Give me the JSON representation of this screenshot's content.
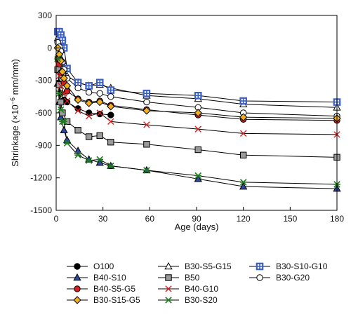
{
  "chart_data": {
    "type": "line",
    "title": "",
    "xlabel": "Age (days)",
    "ylabel": "Shrinkage (×10⁻⁶ mm/mm)",
    "ylabel_parts": {
      "main": "Shrinkage (×10",
      "sup": "−6",
      "unit": " mm/mm)"
    },
    "xlim": [
      0,
      180
    ],
    "ylim": [
      -1500,
      300
    ],
    "xticks": [
      0,
      30,
      60,
      90,
      120,
      150,
      180
    ],
    "yticks": [
      300,
      0,
      -300,
      -600,
      -900,
      -1200,
      -1500
    ],
    "grid": false,
    "legend_position": "bottom",
    "series": [
      {
        "name": "O100",
        "marker": "circle",
        "fill": "#000000",
        "stroke": "#000000",
        "x": [
          1,
          2,
          3,
          5,
          7,
          14,
          21,
          28,
          35
        ],
        "y": [
          -200,
          -330,
          -420,
          -480,
          -500,
          -560,
          -600,
          -610,
          -620
        ]
      },
      {
        "name": "B30-S5-G15",
        "marker": "triangle",
        "fill": "#ffffff",
        "stroke": "#000000",
        "x": [
          1,
          2,
          3,
          4,
          5,
          7,
          14,
          21,
          28,
          35,
          58,
          91,
          120,
          180
        ],
        "y": [
          90,
          40,
          -20,
          -120,
          -180,
          -260,
          -320,
          -350,
          -340,
          -370,
          -440,
          -470,
          -520,
          -550
        ]
      },
      {
        "name": "B30-S10-G10",
        "marker": "square-cross",
        "fill": "#ffffff",
        "stroke": "#3a5fc8",
        "x": [
          1,
          2,
          3,
          4,
          5,
          7,
          14,
          21,
          28,
          35,
          58,
          91,
          120,
          180
        ],
        "y": [
          150,
          150,
          120,
          70,
          0,
          -190,
          -320,
          -350,
          -320,
          -390,
          -420,
          -440,
          -490,
          -500
        ]
      },
      {
        "name": "B40-S10",
        "marker": "triangle",
        "fill": "#2e4a9a",
        "stroke": "#000000",
        "x": [
          1,
          2,
          3,
          5,
          7,
          14,
          21,
          28,
          35,
          58,
          91,
          120,
          180
        ],
        "y": [
          -330,
          -500,
          -640,
          -760,
          -850,
          -950,
          -1030,
          -1060,
          -1090,
          -1130,
          -1210,
          -1280,
          -1300
        ]
      },
      {
        "name": "B50",
        "marker": "square",
        "fill": "#9a9a9a",
        "stroke": "#000000",
        "x": [
          1,
          2,
          3,
          4,
          7,
          14,
          21,
          28,
          35,
          58,
          91,
          120,
          180
        ],
        "y": [
          -200,
          -340,
          -500,
          -600,
          -680,
          -760,
          -820,
          -810,
          -870,
          -890,
          -940,
          -990,
          -1010
        ]
      },
      {
        "name": "B30-G20",
        "marker": "circle",
        "fill": "#ffffff",
        "stroke": "#000000",
        "x": [
          1,
          2,
          3,
          4,
          5,
          7,
          14,
          21,
          28,
          35,
          58,
          91,
          120,
          180
        ],
        "y": [
          50,
          10,
          -30,
          -130,
          -200,
          -280,
          -370,
          -410,
          -420,
          -450,
          -500,
          -550,
          -600,
          -630
        ]
      },
      {
        "name": "B40-S5-G5",
        "marker": "circle",
        "fill": "#d42020",
        "stroke": "#000000",
        "x": [
          1,
          2,
          3,
          5,
          7,
          14,
          21,
          28,
          35,
          58,
          91,
          120,
          180
        ],
        "y": [
          -100,
          -150,
          -230,
          -320,
          -400,
          -470,
          -500,
          -490,
          -530,
          -570,
          -620,
          -660,
          -670
        ]
      },
      {
        "name": "B40-G10",
        "marker": "x",
        "fill": "none",
        "stroke": "#d42020",
        "x": [
          1,
          2,
          3,
          5,
          7,
          14,
          21,
          28,
          35,
          58,
          91,
          120,
          180
        ],
        "y": [
          -150,
          -260,
          -350,
          -420,
          -490,
          -580,
          -630,
          -600,
          -680,
          -710,
          -750,
          -790,
          -800
        ]
      },
      {
        "name": "B30-S15-G5",
        "marker": "diamond",
        "fill": "#f0b020",
        "stroke": "#000000",
        "x": [
          1,
          2,
          3,
          4,
          5,
          7,
          14,
          21,
          28,
          35,
          58,
          91,
          120,
          180
        ],
        "y": [
          0,
          -60,
          -120,
          -220,
          -280,
          -350,
          -480,
          -510,
          -500,
          -540,
          -580,
          -600,
          -640,
          -650
        ]
      },
      {
        "name": "B30-S20",
        "marker": "asterisk",
        "fill": "none",
        "stroke": "#1f7a1f",
        "x": [
          1,
          2,
          3,
          4,
          5,
          7,
          14,
          21,
          28,
          35,
          58,
          91,
          120,
          180
        ],
        "y": [
          -100,
          -420,
          -570,
          -680,
          -680,
          -880,
          -990,
          -1040,
          -1030,
          -1090,
          -1130,
          -1180,
          -1240,
          -1260
        ]
      }
    ],
    "legend_rows": [
      [
        "O100",
        "B30-S5-G15",
        "B30-S10-G10"
      ],
      [
        "B40-S10",
        "B50",
        "B30-G20"
      ],
      [
        "B40-S5-G5",
        "B40-G10",
        ""
      ],
      [
        "B30-S15-G5",
        "B30-S20",
        ""
      ]
    ]
  }
}
